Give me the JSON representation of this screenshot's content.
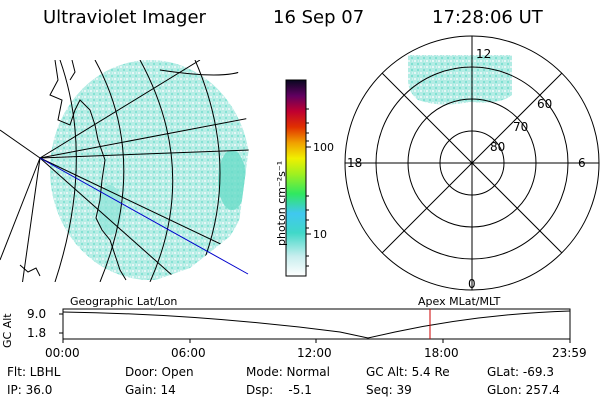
{
  "header": {
    "instrument": "Ultraviolet Imager",
    "date": "16 Sep 07",
    "time": "17:28:06 UT"
  },
  "colorbar": {
    "unit_label": "photon cm⁻²s⁻¹",
    "ticks": [
      "100",
      "10"
    ]
  },
  "polar_plot": {
    "mlt_labels": [
      "12",
      "18",
      "6",
      "0"
    ],
    "mlat_labels": [
      "60",
      "70",
      "80"
    ]
  },
  "timeline": {
    "left_title": "Geographic Lat/Lon",
    "right_title": "Apex  MLat/MLT",
    "y_label": "GC Alt",
    "y_ticks": [
      "9.0",
      "1.8"
    ],
    "x_ticks": [
      "00:00",
      "06:00",
      "12:00",
      "18:00",
      "23:59"
    ]
  },
  "info": {
    "flt": "Flt: LBHL",
    "ip": "IP: 36.0",
    "door": "Door: Open",
    "gain": "Gain: 14",
    "mode": "Mode: Normal",
    "dsp": "Dsp:    -5.1",
    "gc_alt": "GC Alt: 5.4 Re",
    "seq": "Seq: 39",
    "glat": "GLat: -69.3",
    "glon": "GLon: 257.4"
  },
  "colors": {
    "auroral_fill": "#a8e8e0",
    "bright_patch": "#6adcc8",
    "track_line": "#0000cc",
    "time_marker": "#cc0000"
  }
}
